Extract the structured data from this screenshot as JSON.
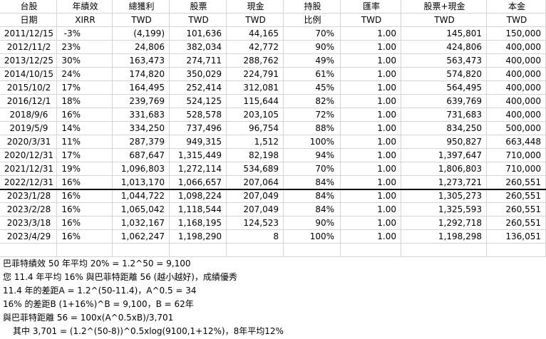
{
  "table": {
    "header": [
      [
        "台股",
        "年績效",
        "總獲利",
        "股票",
        "現金",
        "持股",
        "匯率",
        "股票+現金",
        "本金"
      ],
      [
        "日期",
        "XIRR",
        "TWD",
        "TWD",
        "TWD",
        "比例",
        "TWD",
        "TWD",
        "TWD"
      ]
    ],
    "rows": [
      [
        "2011/12/15",
        "-3%",
        "(4,199)",
        "101,636",
        "44,165",
        "70%",
        "1.00",
        "145,801",
        "150,000"
      ],
      [
        "2012/11/2",
        "23%",
        "24,806",
        "382,034",
        "42,772",
        "90%",
        "1.00",
        "424,806",
        "400,000"
      ],
      [
        "2013/12/25",
        "30%",
        "163,473",
        "274,711",
        "288,762",
        "49%",
        "1.00",
        "563,473",
        "400,000"
      ],
      [
        "2014/10/15",
        "24%",
        "174,820",
        "350,029",
        "224,791",
        "61%",
        "1.00",
        "574,820",
        "400,000"
      ],
      [
        "2015/10/2",
        "17%",
        "164,495",
        "252,414",
        "312,081",
        "45%",
        "1.00",
        "564,495",
        "400,000"
      ],
      [
        "2016/12/1",
        "18%",
        "239,769",
        "524,125",
        "115,644",
        "82%",
        "1.00",
        "639,769",
        "400,000"
      ],
      [
        "2018/9/6",
        "16%",
        "331,683",
        "528,578",
        "203,105",
        "72%",
        "1.00",
        "731,683",
        "400,000"
      ],
      [
        "2019/5/9",
        "14%",
        "334,250",
        "737,496",
        "96,754",
        "88%",
        "1.00",
        "834,250",
        "500,000"
      ],
      [
        "2020/3/31",
        "11%",
        "287,379",
        "949,315",
        "1,512",
        "100%",
        "1.00",
        "950,827",
        "663,448"
      ],
      [
        "2020/12/31",
        "17%",
        "687,647",
        "1,315,449",
        "82,198",
        "94%",
        "1.00",
        "1,397,647",
        "710,000"
      ],
      [
        "2021/12/31",
        "19%",
        "1,096,803",
        "1,272,114",
        "534,689",
        "70%",
        "1.00",
        "1,806,803",
        "710,000"
      ],
      [
        "2022/12/31",
        "16%",
        "1,013,170",
        "1,066,657",
        "207,064",
        "84%",
        "1.00",
        "1,273,721",
        "260,551"
      ],
      [
        "2023/1/28",
        "16%",
        "1,044,722",
        "1,098,224",
        "207,049",
        "84%",
        "1.00",
        "1,305,273",
        "260,551"
      ],
      [
        "2023/2/28",
        "16%",
        "1,065,042",
        "1,118,544",
        "207,049",
        "84%",
        "1.00",
        "1,325,593",
        "260,551"
      ],
      [
        "2023/3/18",
        "16%",
        "1,032,167",
        "1,168,195",
        "124,523",
        "90%",
        "1.00",
        "1,292,718",
        "260,551"
      ],
      [
        "2023/4/29",
        "16%",
        "1,062,247",
        "1,198,290",
        "8",
        "100%",
        "1.00",
        "1,198,298",
        "136,051"
      ]
    ]
  },
  "notes": [
    "巴菲特績效 50 年平均 20% = 1.2^50 = 9,100",
    "您 11.4 年平均 16% 與巴菲特距離 56 (越小越好)，成績優秀",
    "11.4 年的差距A = 1.2^(50-11.4)，A^0.5 = 34",
    "16% 的差距B (1+16%)^B = 9,100，B = 62年",
    "與巴菲特距離 56 = 100x(A^0.5xB)/3,701",
    "其中 3,701 = (1.2^(50-8))^0.5xlog(9100,1+12%)，8年平均12%"
  ]
}
